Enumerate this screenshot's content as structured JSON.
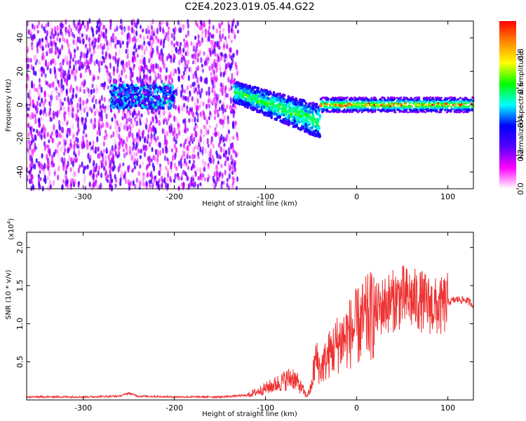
{
  "chart_data": [
    {
      "type": "heatmap",
      "title": "C2E4.2023.019.05.44.G22",
      "xlabel": "Height of straight line (km)",
      "ylabel": "Frequency (Hz)",
      "xlim": [
        -362,
        128
      ],
      "ylim": [
        -50,
        50
      ],
      "xticks": [
        -300,
        -200,
        -100,
        0,
        100
      ],
      "xtick_labels": [
        "-300",
        "-200",
        "-100",
        "0",
        "100"
      ],
      "yticks": [
        -40,
        -20,
        0,
        20,
        40
      ],
      "ytick_labels": [
        "-40",
        "-20",
        "0",
        "20",
        "40"
      ],
      "colorbar": {
        "label": "Normalized spectral amplitude",
        "range": [
          0,
          1
        ],
        "ticks": [
          0.0,
          0.2,
          0.4,
          0.6,
          0.8
        ],
        "tick_labels": [
          "0.0",
          "0.2",
          "0.4",
          "0.6",
          "0.8"
        ],
        "colormap": [
          "#ffffff",
          "#ff00ff",
          "#5500ff",
          "#0000ff",
          "#00ffff",
          "#00ff00",
          "#ffff00",
          "#ff8800",
          "#ff0000"
        ]
      },
      "grid": false,
      "features": [
        {
          "x_range": [
            -362,
            -130
          ],
          "freq_center": 0,
          "description": "diffuse noise band"
        },
        {
          "x_range": [
            -270,
            -200
          ],
          "freq_center": 5
        },
        {
          "x_range": [
            -135,
            -40
          ],
          "freq_center_start": 8,
          "freq_center_end": -10
        },
        {
          "x_range": [
            -40,
            128
          ],
          "freq_center": 0
        }
      ]
    },
    {
      "type": "line",
      "xlabel": "Height of straight line (km)",
      "ylabel": "SNR (10 * v/v)",
      "y_multiplier_label": "(x10",
      "y_multiplier_exp": "4",
      "y_multiplier_close": ")",
      "xlim": [
        -362,
        128
      ],
      "ylim": [
        0,
        22000
      ],
      "xticks": [
        -300,
        -200,
        -100,
        0,
        100
      ],
      "xtick_labels": [
        "-300",
        "-200",
        "-100",
        "0",
        "100"
      ],
      "yticks": [
        5000,
        10000,
        15000,
        20000
      ],
      "ytick_labels": [
        "0.5",
        "1.0",
        "1.5",
        "2.0"
      ],
      "series": [
        {
          "color": "#ee3333",
          "x": [
            -362,
            -300,
            -260,
            -250,
            -240,
            -200,
            -150,
            -120,
            -100,
            -80,
            -70,
            -60,
            -55,
            -50,
            -45,
            -40,
            -30,
            -20,
            -10,
            0,
            10,
            20,
            30,
            40,
            50,
            60,
            70,
            80,
            90,
            100,
            110,
            120,
            128
          ],
          "y": [
            400,
            400,
            500,
            900,
            500,
            400,
            400,
            600,
            1500,
            2500,
            3000,
            1500,
            500,
            1500,
            5500,
            4000,
            6000,
            7500,
            8500,
            9500,
            10500,
            11500,
            12500,
            13000,
            13500,
            13200,
            13000,
            12500,
            12000,
            12800,
            13200,
            13100,
            12500
          ]
        }
      ]
    }
  ]
}
